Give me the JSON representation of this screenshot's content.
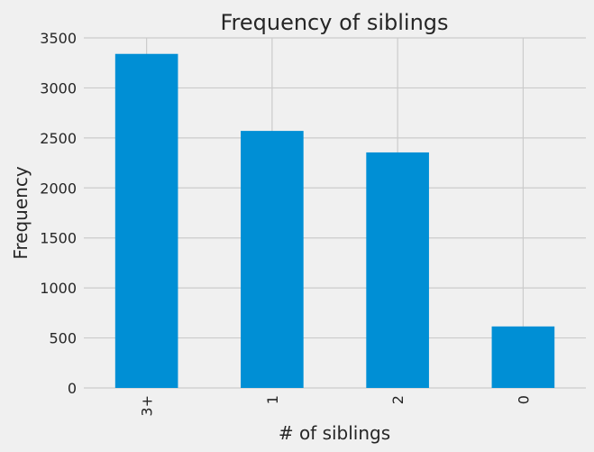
{
  "chart_data": {
    "type": "bar",
    "title": "Frequency of siblings",
    "xlabel": "# of siblings",
    "ylabel": "Frequency",
    "categories": [
      "3+",
      "1",
      "2",
      "0"
    ],
    "values": [
      3340,
      2570,
      2355,
      615
    ],
    "ylim": [
      0,
      3500
    ],
    "yticks": [
      "0",
      "500",
      "1000",
      "1500",
      "2000",
      "2500",
      "3000",
      "3500"
    ],
    "grid": true,
    "bar_color": "#008fd5",
    "background_color": "#f0f0f0",
    "grid_color": "#cbcbcb"
  }
}
